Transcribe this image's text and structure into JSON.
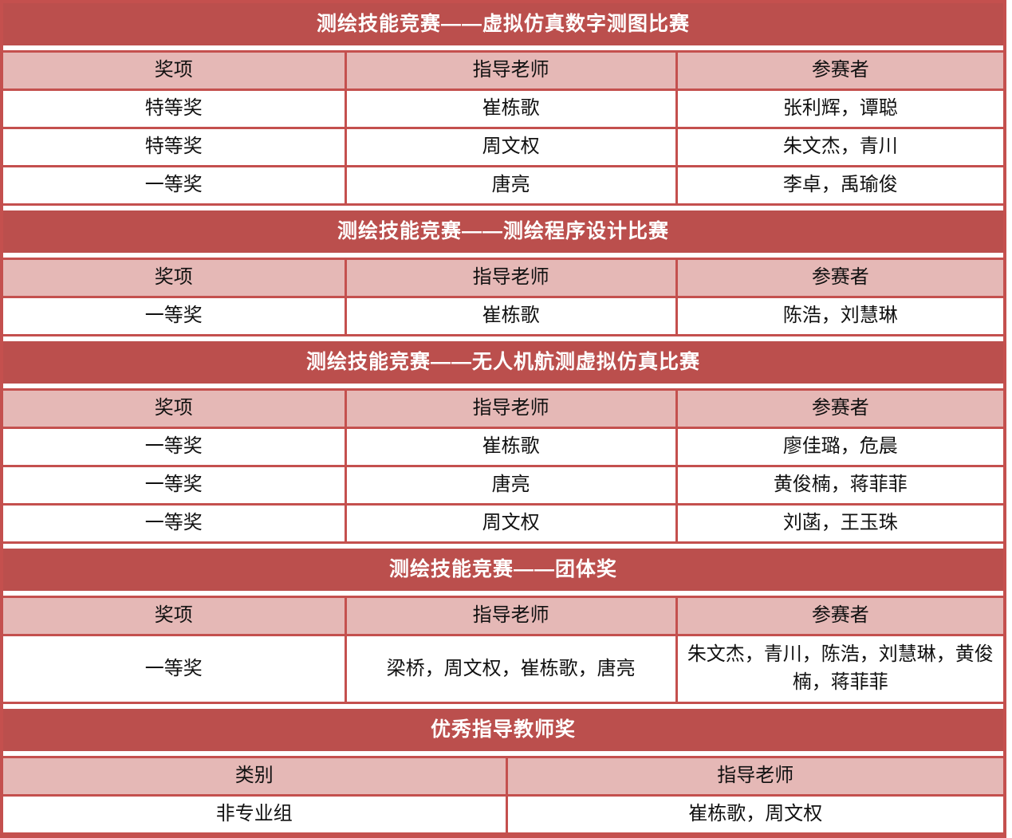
{
  "colors": {
    "band_red": "#bb4f4d",
    "border_red": "#c4504e",
    "header_pink": "#e5b8b6",
    "title_text": "#ffffff",
    "body_text": "#111111"
  },
  "sections": [
    {
      "title": "测绘技能竞赛——虚拟仿真数字测图比赛",
      "headers": [
        "奖项",
        "指导老师",
        "参赛者"
      ],
      "rows": [
        [
          "特等奖",
          "崔栋歌",
          "张利辉，谭聪"
        ],
        [
          "特等奖",
          "周文权",
          "朱文杰，青川"
        ],
        [
          "一等奖",
          "唐亮",
          "李卓，禹瑜俊"
        ]
      ]
    },
    {
      "title": "测绘技能竞赛——测绘程序设计比赛",
      "headers": [
        "奖项",
        "指导老师",
        "参赛者"
      ],
      "rows": [
        [
          "一等奖",
          "崔栋歌",
          "陈浩，刘慧琳"
        ]
      ]
    },
    {
      "title": "测绘技能竞赛——无人机航测虚拟仿真比赛",
      "headers": [
        "奖项",
        "指导老师",
        "参赛者"
      ],
      "rows": [
        [
          "一等奖",
          "崔栋歌",
          "廖佳璐，危晨"
        ],
        [
          "一等奖",
          "唐亮",
          "黄俊楠，蒋菲菲"
        ],
        [
          "一等奖",
          "周文权",
          "刘菡，王玉珠"
        ]
      ]
    },
    {
      "title": "测绘技能竞赛——团体奖",
      "headers": [
        "奖项",
        "指导老师",
        "参赛者"
      ],
      "rows": [
        [
          "一等奖",
          "梁桥，周文权，崔栋歌，唐亮",
          "朱文杰，青川，陈浩，刘慧琳，黄俊楠，蒋菲菲"
        ]
      ]
    },
    {
      "title": "优秀指导教师奖",
      "headers": [
        "类别",
        "指导老师"
      ],
      "rows": [
        [
          "非专业组",
          "崔栋歌，周文权"
        ]
      ]
    }
  ]
}
